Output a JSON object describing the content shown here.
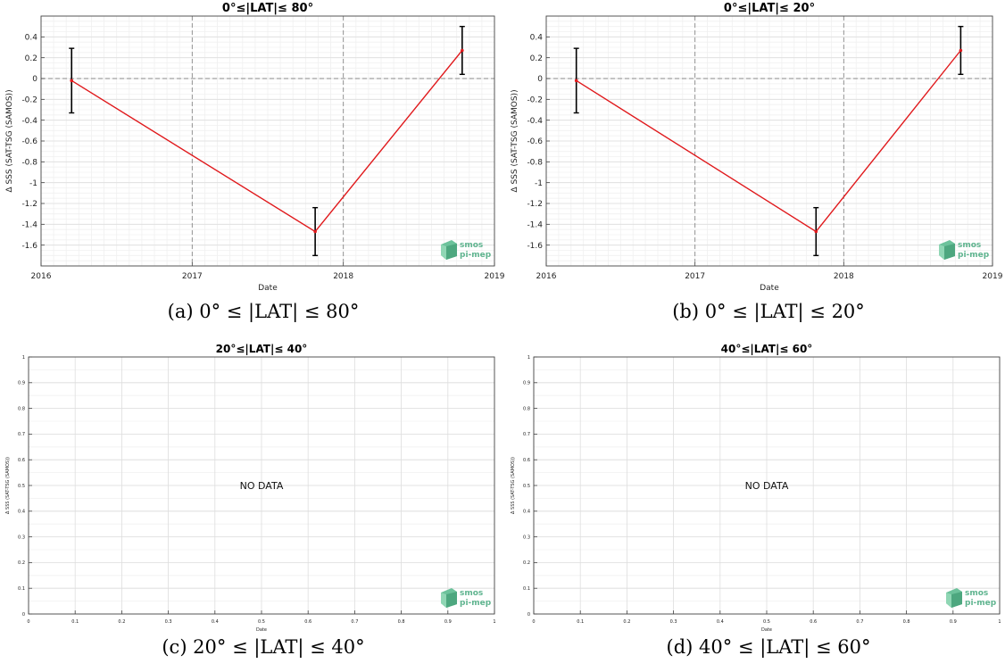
{
  "logo": {
    "line1": "smos",
    "line2": "pi-mep"
  },
  "chart_data": [
    {
      "type": "line",
      "title": "0°≤|LAT|≤ 80°",
      "caption": "(a) 0° ≤ |LAT| ≤ 80°",
      "xlabel": "Date",
      "ylabel": "Δ SSS (SAT-TSG (SAMOS))",
      "xlim": [
        "2016-01-01",
        "2019-01-01"
      ],
      "x_ticks": [
        "2016",
        "2017",
        "2018",
        "2019"
      ],
      "ylim": [
        -1.8,
        0.6
      ],
      "y_ticks": [
        -1.6,
        -1.4,
        -1.2,
        -1,
        -0.8,
        -0.6,
        -0.4,
        -0.2,
        0,
        0.2,
        0.4
      ],
      "y_tick_labels": [
        "-1.6",
        "-1.4",
        "-1.2",
        "-1",
        "-0.8",
        "-0.6",
        "-0.4",
        "-0.2",
        "0",
        "0.2",
        "0.4"
      ],
      "grid": true,
      "zero_line": true,
      "no_data": "",
      "series": [
        {
          "x": [
            "2016-03-15",
            "2017-10-25",
            "2018-10-15"
          ],
          "y": [
            -0.02,
            -1.47,
            0.27
          ],
          "err": [
            0.31,
            0.23,
            0.23
          ]
        }
      ]
    },
    {
      "type": "line",
      "title": "0°≤|LAT|≤ 20°",
      "caption": "(b) 0° ≤ |LAT| ≤ 20°",
      "xlabel": "Date",
      "ylabel": "Δ SSS (SAT-TSG (SAMOS))",
      "xlim": [
        "2016-01-01",
        "2019-01-01"
      ],
      "x_ticks": [
        "2016",
        "2017",
        "2018",
        "2019"
      ],
      "ylim": [
        -1.8,
        0.6
      ],
      "y_ticks": [
        -1.6,
        -1.4,
        -1.2,
        -1,
        -0.8,
        -0.6,
        -0.4,
        -0.2,
        0,
        0.2,
        0.4
      ],
      "y_tick_labels": [
        "-1.6",
        "-1.4",
        "-1.2",
        "-1",
        "-0.8",
        "-0.6",
        "-0.4",
        "-0.2",
        "0",
        "0.2",
        "0.4"
      ],
      "grid": true,
      "zero_line": true,
      "no_data": "",
      "series": [
        {
          "x": [
            "2016-03-15",
            "2017-10-25",
            "2018-10-15"
          ],
          "y": [
            -0.02,
            -1.47,
            0.27
          ],
          "err": [
            0.31,
            0.23,
            0.23
          ]
        }
      ]
    },
    {
      "type": "line",
      "title": "20°≤|LAT|≤ 40°",
      "caption": "(c) 20° ≤ |LAT| ≤ 40°",
      "xlabel": "Date",
      "ylabel": "Δ SSS (SAT-TSG (SAMOS))",
      "xlim": [
        0,
        1
      ],
      "x_ticks": [
        0,
        0.1,
        0.2,
        0.3,
        0.4,
        0.5,
        0.6,
        0.7,
        0.8,
        0.9,
        1
      ],
      "x_tick_labels": [
        "0",
        "0.1",
        "0.2",
        "0.3",
        "0.4",
        "0.5",
        "0.6",
        "0.7",
        "0.8",
        "0.9",
        "1"
      ],
      "ylim": [
        0,
        1
      ],
      "y_ticks": [
        0,
        0.1,
        0.2,
        0.3,
        0.4,
        0.5,
        0.6,
        0.7,
        0.8,
        0.9,
        1
      ],
      "y_tick_labels": [
        "0",
        "0.1",
        "0.2",
        "0.3",
        "0.4",
        "0.5",
        "0.6",
        "0.7",
        "0.8",
        "0.9",
        "1"
      ],
      "grid": true,
      "zero_line": false,
      "no_data": "NO DATA",
      "series": []
    },
    {
      "type": "line",
      "title": "40°≤|LAT|≤ 60°",
      "caption": "(d) 40° ≤ |LAT| ≤ 60°",
      "xlabel": "Date",
      "ylabel": "Δ SSS (SAT-TSG (SAMOS))",
      "xlim": [
        0,
        1
      ],
      "x_ticks": [
        0,
        0.1,
        0.2,
        0.3,
        0.4,
        0.5,
        0.6,
        0.7,
        0.8,
        0.9,
        1
      ],
      "x_tick_labels": [
        "0",
        "0.1",
        "0.2",
        "0.3",
        "0.4",
        "0.5",
        "0.6",
        "0.7",
        "0.8",
        "0.9",
        "1"
      ],
      "ylim": [
        0,
        1
      ],
      "y_ticks": [
        0,
        0.1,
        0.2,
        0.3,
        0.4,
        0.5,
        0.6,
        0.7,
        0.8,
        0.9,
        1
      ],
      "y_tick_labels": [
        "0",
        "0.1",
        "0.2",
        "0.3",
        "0.4",
        "0.5",
        "0.6",
        "0.7",
        "0.8",
        "0.9",
        "1"
      ],
      "grid": true,
      "zero_line": false,
      "no_data": "NO DATA",
      "series": []
    }
  ]
}
